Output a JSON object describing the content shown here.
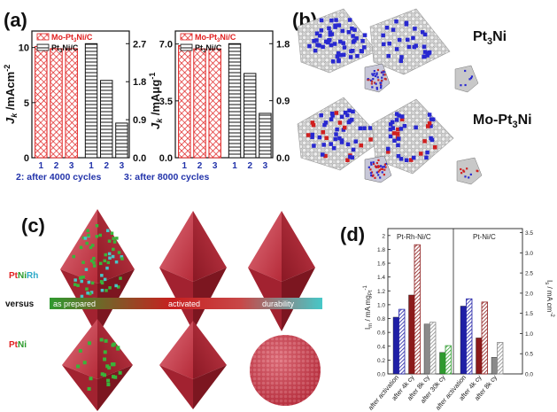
{
  "panels": {
    "a": {
      "label": "(a)",
      "left_chart": {
        "legend": [
          {
            "text_pre": "Mo-Pt",
            "sub": "3",
            "text_post": "Ni/C",
            "color": "#e02020",
            "pattern": "crosshatch"
          },
          {
            "text_pre": "Pt",
            "sub": "3",
            "text_post": "Ni/C",
            "color": "#111111",
            "pattern": "hline"
          }
        ],
        "ylabel_pre": "J",
        "ylabel_sub": "k",
        "ylabel_post": " /mAcm",
        "ylabel_sup": "-2",
        "left_ticks": [
          "0",
          "5",
          "10"
        ],
        "right_ticks": [
          "0.0",
          "0.9",
          "1.8",
          "2.7"
        ]
      },
      "right_chart": {
        "legend": [
          {
            "text_pre": "Mo-Pt",
            "sub": "3",
            "text_post": "Ni/C",
            "color": "#e02020",
            "pattern": "crosshatch"
          },
          {
            "text_pre": "Pt",
            "sub": "3",
            "text_post": "Ni/C",
            "color": "#111111",
            "pattern": "hline"
          }
        ],
        "ylabel_pre": "J",
        "ylabel_sub": "k",
        "ylabel_post": " /mA",
        "ylabel_post2": "μg",
        "ylabel_sup": "-1",
        "left_ticks": [
          "0.0",
          "3.5",
          "7.0"
        ],
        "right_ticks": [
          "0.0",
          "0.9",
          "1.8"
        ]
      },
      "x_ticks": [
        "1",
        "2",
        "3",
        "1",
        "2",
        "3"
      ],
      "caption_left": "2: after 4000 cycles",
      "caption_right": "3: after 8000 cycles"
    },
    "b": {
      "label": "(b)",
      "row1": {
        "text_pre": "Pt",
        "sub": "3",
        "text_post": "Ni"
      },
      "row2": {
        "text_pre": "Mo-Pt",
        "sub": "3",
        "text_post": "Ni"
      }
    },
    "c": {
      "label": "(c)",
      "row1_pre": "Pt",
      "row1_mid": "Ni",
      "row1_post": "Rh",
      "versus": "versus",
      "bar_labels": [
        "as prepared",
        "activated",
        "durability"
      ],
      "row2_pre": "Pt",
      "row2_post": "Ni"
    },
    "d": {
      "label": "(d)",
      "group1_title": "Pt-Rh-Ni/C",
      "group2_title": "Pt-Ni/C",
      "ylabel_left_pre": "I",
      "ylabel_left_sub": "m",
      "ylabel_left_post": " / mA mg",
      "ylabel_left_sub2": "Pt",
      "ylabel_left_sup": "-1",
      "ylabel_right_pre": "I",
      "ylabel_right_sub": "s",
      "ylabel_right_post": " / mA cm",
      "ylabel_right_sup": "-2",
      "left_ticks": [
        "0.0",
        "0.2",
        "0.4",
        "0.6",
        "0.8",
        "1.0",
        "1.2",
        "1.4",
        "1.6",
        "1.8",
        "2"
      ],
      "right_ticks": [
        "0.0",
        "0.5",
        "1.0",
        "1.5",
        "2.0",
        "2.5",
        "3.0",
        "3.5"
      ],
      "x_labels_1": [
        "after activation",
        "after 4k cy",
        "after 8k cy",
        "after 30k cy"
      ],
      "x_labels_2": [
        "after activation",
        "after 4k cy",
        "after 8k cy"
      ]
    }
  },
  "chart_data": [
    {
      "type": "bar",
      "title": "",
      "ylabel": "Jk /mAcm-2",
      "y2label": "",
      "categories": [
        "1",
        "2",
        "3",
        "1",
        "2",
        "3"
      ],
      "ylim": [
        0,
        11.5
      ],
      "y2lim": [
        0,
        3.0
      ],
      "series": [
        {
          "name": "Mo-Pt3Ni/C",
          "values": [
            10.1,
            9.9,
            9.9,
            null,
            null,
            null
          ],
          "axis": "left",
          "color": "#e02020"
        },
        {
          "name": "Pt3Ni/C",
          "values": [
            null,
            null,
            null,
            2.7,
            1.83,
            0.82
          ],
          "axis": "right",
          "color": "#111111"
        }
      ]
    },
    {
      "type": "bar",
      "title": "",
      "ylabel": "Jk /mAμg-1",
      "categories": [
        "1",
        "2",
        "3",
        "1",
        "2",
        "3"
      ],
      "ylim": [
        0,
        7.8
      ],
      "y2lim": [
        0,
        2.0
      ],
      "series": [
        {
          "name": "Mo-Pt3Ni/C",
          "values": [
            6.9,
            6.7,
            6.7,
            null,
            null,
            null
          ],
          "axis": "left",
          "color": "#e02020"
        },
        {
          "name": "Pt3Ni/C",
          "values": [
            null,
            null,
            null,
            1.8,
            1.33,
            0.7
          ],
          "axis": "right",
          "color": "#111111"
        }
      ]
    },
    {
      "type": "bar",
      "title": "",
      "ylabel": "Im / mA mgPt-1",
      "y2label": "Is / mA cm-2",
      "ylim": [
        0,
        2.1
      ],
      "y2lim": [
        0,
        3.6
      ],
      "groups": [
        {
          "name": "Pt-Rh-Ni/C",
          "categories": [
            "after activation",
            "after 4k cy",
            "after 8k cy",
            "after 30k cy"
          ],
          "mass_activity": [
            0.82,
            1.14,
            0.72,
            0.31
          ],
          "specific_activity": [
            1.6,
            3.2,
            1.28,
            0.7
          ],
          "colors": [
            "#1f1fa6",
            "#8c1a1a",
            "#8a8a8a",
            "#2e9a2e"
          ]
        },
        {
          "name": "Pt-Ni/C",
          "categories": [
            "after activation",
            "after 4k cy",
            "after 8k cy"
          ],
          "mass_activity": [
            0.98,
            0.52,
            0.24
          ],
          "specific_activity": [
            1.86,
            1.78,
            0.78
          ],
          "colors": [
            "#1f1fa6",
            "#8c1a1a",
            "#8a8a8a"
          ]
        }
      ]
    }
  ]
}
